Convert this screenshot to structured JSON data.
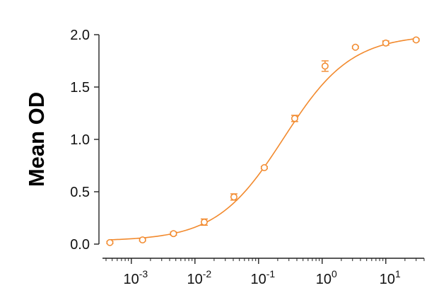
{
  "chart_data": {
    "type": "scatter",
    "xscale": "log",
    "xlim": [
      0.0004,
      40
    ],
    "ylim": [
      0,
      2.0
    ],
    "ylabel": "Mean OD",
    "xlabel": "",
    "title": "",
    "grid": false,
    "legend": "none",
    "color": "#F28A2E",
    "yticks": [
      "0.0",
      "0.5",
      "1.0",
      "1.5",
      "2.0"
    ],
    "xticks": [
      {
        "value": 0.001,
        "base": "10",
        "exp": "-3"
      },
      {
        "value": 0.01,
        "base": "10",
        "exp": "-2"
      },
      {
        "value": 0.1,
        "base": "10",
        "exp": "-1"
      },
      {
        "value": 1,
        "base": "10",
        "exp": "0"
      },
      {
        "value": 10,
        "base": "10",
        "exp": "1"
      }
    ],
    "series": [
      {
        "x": [
          0.00046,
          0.0015,
          0.0046,
          0.014,
          0.041,
          0.123,
          0.37,
          1.11,
          3.33,
          10,
          30
        ],
        "y": [
          0.015,
          0.04,
          0.1,
          0.21,
          0.45,
          0.73,
          1.2,
          1.7,
          1.88,
          1.92,
          1.95
        ],
        "err": [
          0.01,
          0.01,
          0.015,
          0.03,
          0.03,
          0.01,
          0.03,
          0.05,
          0.01,
          0.02,
          0.01
        ]
      }
    ],
    "fit": {
      "bottom": 0.03,
      "top": 2.0,
      "ec50": 0.25,
      "hill": 0.82
    }
  }
}
